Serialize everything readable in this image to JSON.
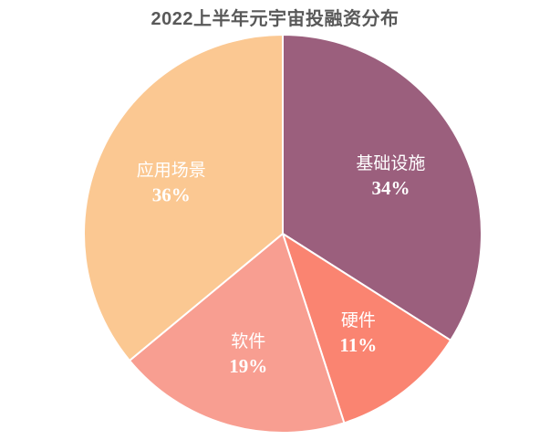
{
  "chart_data": {
    "type": "pie",
    "title": "2022上半年元宇宙投融资分布",
    "slices": [
      {
        "label": "基础设施",
        "value": 34,
        "value_label": "34%",
        "color": "#9B5F7D"
      },
      {
        "label": "硬件",
        "value": 11,
        "value_label": "11%",
        "color": "#FA8471"
      },
      {
        "label": "软件",
        "value": 19,
        "value_label": "19%",
        "color": "#F89E91"
      },
      {
        "label": "应用场景",
        "value": 36,
        "value_label": "36%",
        "color": "#FBC892"
      }
    ],
    "start_angle_deg": 0,
    "direction": "clockwise",
    "slice_border_color": "#ffffff",
    "legend": "none"
  }
}
